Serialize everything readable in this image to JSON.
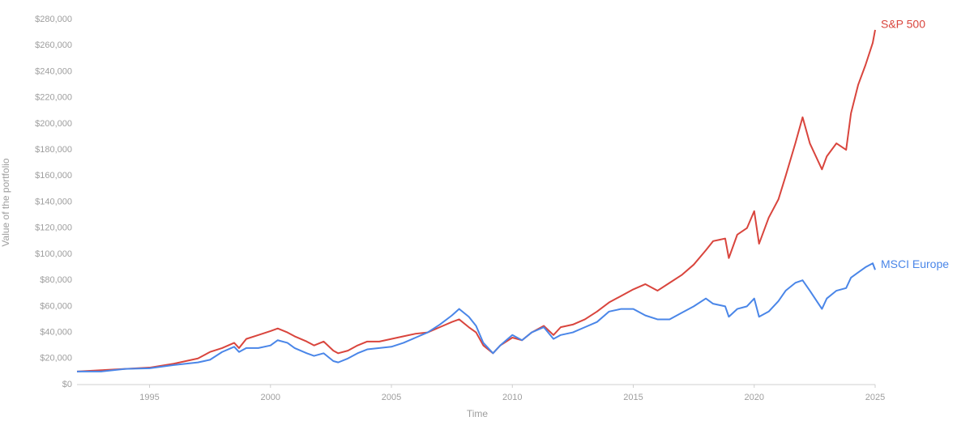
{
  "chart_data": {
    "type": "line",
    "x_label": "Time",
    "y_label": "Value of the portfolio",
    "x": [
      1992,
      1993,
      1994,
      1995,
      1996,
      1997,
      1997.5,
      1998,
      1998.5,
      1998.7,
      1999,
      1999.5,
      2000,
      2000.3,
      2000.7,
      2001,
      2001.5,
      2001.8,
      2002.2,
      2002.6,
      2002.8,
      2003.2,
      2003.6,
      2004,
      2004.5,
      2005,
      2005.5,
      2006,
      2006.5,
      2007,
      2007.5,
      2007.8,
      2008.2,
      2008.5,
      2008.8,
      2009.2,
      2009.5,
      2010,
      2010.4,
      2010.8,
      2011.3,
      2011.7,
      2012,
      2012.5,
      2013,
      2013.5,
      2014,
      2014.5,
      2015,
      2015.5,
      2016,
      2016.5,
      2017,
      2017.5,
      2018,
      2018.3,
      2018.8,
      2018.95,
      2019.3,
      2019.7,
      2020,
      2020.2,
      2020.6,
      2021,
      2021.3,
      2021.7,
      2022,
      2022.3,
      2022.8,
      2023,
      2023.4,
      2023.8,
      2024,
      2024.3,
      2024.6,
      2024.9,
      2025
    ],
    "series": [
      {
        "name": "S&P 500",
        "color": "#d9453d",
        "values": [
          10000,
          11000,
          12000,
          13000,
          16000,
          20000,
          25000,
          28000,
          32000,
          28000,
          35000,
          38000,
          41000,
          43000,
          40000,
          37000,
          33000,
          30000,
          33000,
          26000,
          24000,
          26000,
          30000,
          33000,
          33000,
          35000,
          37000,
          39000,
          40000,
          44000,
          48000,
          50000,
          44000,
          40000,
          30000,
          24000,
          30000,
          36000,
          34000,
          40000,
          45000,
          38000,
          44000,
          46000,
          50000,
          56000,
          63000,
          68000,
          73000,
          77000,
          72000,
          78000,
          84000,
          92000,
          103000,
          110000,
          112000,
          97000,
          115000,
          120000,
          133000,
          108000,
          128000,
          142000,
          160000,
          185000,
          205000,
          185000,
          165000,
          175000,
          185000,
          180000,
          208000,
          230000,
          245000,
          262000,
          272000
        ]
      },
      {
        "name": "MSCI Europe",
        "color": "#4a86e8",
        "values": [
          10000,
          10000,
          12000,
          12500,
          15000,
          17000,
          19000,
          25000,
          29000,
          25000,
          28000,
          28000,
          30000,
          34000,
          32000,
          28000,
          24000,
          22000,
          24000,
          18000,
          17000,
          20000,
          24000,
          27000,
          28000,
          29000,
          32000,
          36000,
          40000,
          46000,
          53000,
          58000,
          52000,
          45000,
          32000,
          24000,
          30000,
          38000,
          34000,
          40000,
          44000,
          35000,
          38000,
          40000,
          44000,
          48000,
          56000,
          58000,
          58000,
          53000,
          50000,
          50000,
          55000,
          60000,
          66000,
          62000,
          60000,
          52000,
          58000,
          60000,
          66000,
          52000,
          56000,
          64000,
          72000,
          78000,
          80000,
          72000,
          58000,
          66000,
          72000,
          74000,
          82000,
          86000,
          90000,
          93000,
          88000
        ]
      }
    ],
    "xlim": [
      1992,
      2025
    ],
    "xticks": [
      1995,
      2000,
      2005,
      2010,
      2015,
      2020,
      2025
    ],
    "ylim": [
      0,
      280000
    ],
    "yticks": [
      {
        "value": 0,
        "label": "$0"
      },
      {
        "value": 20000,
        "label": "$20,000"
      },
      {
        "value": 40000,
        "label": "$40,000"
      },
      {
        "value": 60000,
        "label": "$60,000"
      },
      {
        "value": 80000,
        "label": "$80,000"
      },
      {
        "value": 100000,
        "label": "$100,000"
      },
      {
        "value": 120000,
        "label": "$120,000"
      },
      {
        "value": 140000,
        "label": "$140,000"
      },
      {
        "value": 160000,
        "label": "$160,000"
      },
      {
        "value": 180000,
        "label": "$180,000"
      },
      {
        "value": 200000,
        "label": "$200,000"
      },
      {
        "value": 220000,
        "label": "$220,000"
      },
      {
        "value": 240000,
        "label": "$240,000"
      },
      {
        "value": 260000,
        "label": "$260,000"
      },
      {
        "value": 280000,
        "label": "$280,000"
      }
    ],
    "grid": false
  }
}
